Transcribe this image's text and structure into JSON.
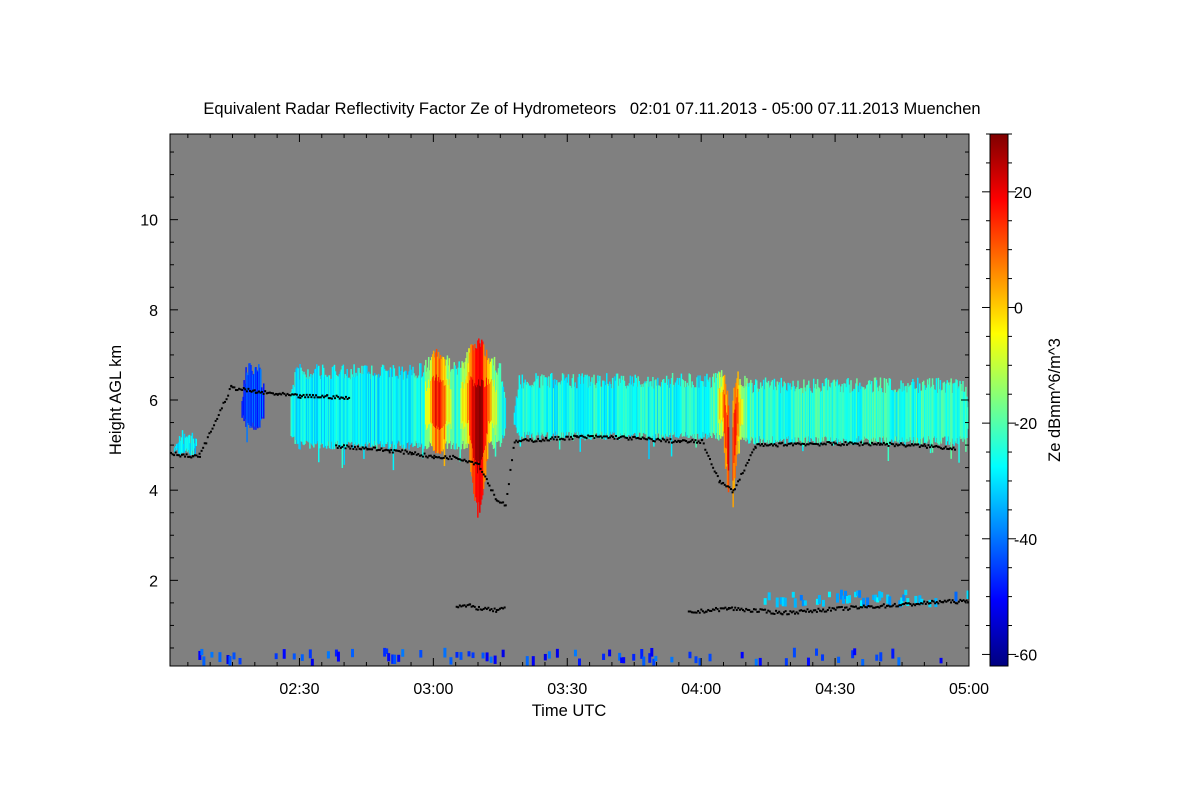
{
  "chart_data": {
    "type": "heatmap",
    "title": "Equivalent Radar Reflectivity Factor Ze of Hydrometeors   02:01 07.11.2013 - 05:00 07.11.2013 Muenchen",
    "xlabel": "Time UTC",
    "ylabel": "Height AGL km",
    "colorbar_label": "Ze dBmm^6/m^3",
    "xlim_minutes": [
      121,
      300
    ],
    "ylim_km": [
      0.1,
      11.9
    ],
    "xticks": [
      {
        "minutes": 150,
        "label": "02:30"
      },
      {
        "minutes": 180,
        "label": "03:00"
      },
      {
        "minutes": 210,
        "label": "03:30"
      },
      {
        "minutes": 240,
        "label": "04:00"
      },
      {
        "minutes": 270,
        "label": "04:30"
      },
      {
        "minutes": 300,
        "label": "05:00"
      }
    ],
    "yticks": [
      {
        "km": 2,
        "label": "2"
      },
      {
        "km": 4,
        "label": "4"
      },
      {
        "km": 6,
        "label": "6"
      },
      {
        "km": 8,
        "label": "8"
      },
      {
        "km": 10,
        "label": "10"
      }
    ],
    "colorbar_range": [
      -62,
      30
    ],
    "colorbar_ticks": [
      {
        "value": 20,
        "label": "20"
      },
      {
        "value": 0,
        "label": "0"
      },
      {
        "value": -20,
        "label": "-20"
      },
      {
        "value": -40,
        "label": "-40"
      },
      {
        "value": -60,
        "label": "-60"
      }
    ],
    "background_color": "#808080",
    "colormap": [
      "#00007f",
      "#0000ff",
      "#007fff",
      "#00ffff",
      "#7fff7f",
      "#ffff00",
      "#ff7f00",
      "#ff0000",
      "#7f0000"
    ],
    "cloud_layers": [
      {
        "name": "early-patch",
        "t_start": 121,
        "t_end": 127.5,
        "base_km": 4.75,
        "top_km": 5.35,
        "ze_dbz": -30
      },
      {
        "name": "patch-0215",
        "t_start": 137,
        "t_end": 142,
        "base_km": 5.3,
        "top_km": 6.9,
        "ze_dbz": -44
      },
      {
        "name": "main-layer-1",
        "t_start": 148,
        "t_end": 196,
        "base_km": 4.9,
        "top_km": 6.8,
        "ze_dbz": -28
      },
      {
        "name": "main-layer-2",
        "t_start": 198,
        "t_end": 246,
        "base_km": 5.1,
        "top_km": 6.6,
        "ze_dbz": -26
      },
      {
        "name": "main-layer-3",
        "t_start": 247,
        "t_end": 300,
        "base_km": 5.0,
        "top_km": 6.5,
        "ze_dbz": -24
      }
    ],
    "convective_cells": [
      {
        "center_min": 181,
        "width_min": 3,
        "top_km": 7.2,
        "base_km": 4.8,
        "peak_dbz": 8
      },
      {
        "center_min": 190,
        "width_min": 4,
        "top_km": 7.4,
        "base_km": 3.3,
        "peak_dbz": 15
      },
      {
        "center_min": 246.5,
        "width_min": 3,
        "top_km": 6.8,
        "base_km": 3.3,
        "peak_dbz": 10
      }
    ],
    "low_cloud_echoes": [
      {
        "t_start": 254,
        "t_end": 300,
        "height_km": 1.6,
        "ze_dbz": -34
      },
      {
        "t_start": 126,
        "t_end": 300,
        "height_km": 0.3,
        "ze_dbz": -46
      }
    ],
    "cloud_base_series": [
      {
        "name": "mid-level-base",
        "points": [
          [
            121,
            4.85
          ],
          [
            126,
            4.75
          ],
          [
            127.5,
            4.8
          ],
          [
            134.5,
            6.3
          ],
          [
            140,
            6.2
          ],
          [
            145,
            6.15
          ],
          [
            150,
            6.1
          ],
          [
            156,
            6.1
          ],
          [
            161,
            6.05
          ],
          [
            158,
            5.0
          ],
          [
            165,
            4.95
          ],
          [
            170,
            4.9
          ],
          [
            175,
            4.85
          ],
          [
            180,
            4.75
          ],
          [
            185,
            4.75
          ],
          [
            190,
            4.6
          ],
          [
            192,
            4.2
          ],
          [
            194,
            3.8
          ],
          [
            196,
            3.7
          ],
          [
            198,
            5.1
          ],
          [
            205,
            5.15
          ],
          [
            212,
            5.2
          ],
          [
            220,
            5.2
          ],
          [
            228,
            5.15
          ],
          [
            235,
            5.1
          ],
          [
            240,
            5.1
          ],
          [
            244,
            4.2
          ],
          [
            247,
            4.0
          ],
          [
            252,
            5.0
          ],
          [
            260,
            5.05
          ],
          [
            270,
            5.05
          ],
          [
            280,
            5.05
          ],
          [
            290,
            5.0
          ],
          [
            297,
            4.95
          ]
        ]
      },
      {
        "name": "low-level-base",
        "points": [
          [
            185,
            1.45
          ],
          [
            188,
            1.45
          ],
          [
            190,
            1.4
          ],
          [
            194,
            1.35
          ],
          [
            196,
            1.4
          ],
          [
            237,
            1.3
          ],
          [
            241,
            1.35
          ],
          [
            246,
            1.4
          ],
          [
            252,
            1.35
          ],
          [
            258,
            1.3
          ],
          [
            265,
            1.35
          ],
          [
            272,
            1.4
          ],
          [
            280,
            1.45
          ],
          [
            288,
            1.5
          ],
          [
            294,
            1.55
          ],
          [
            300,
            1.55
          ]
        ]
      }
    ]
  }
}
